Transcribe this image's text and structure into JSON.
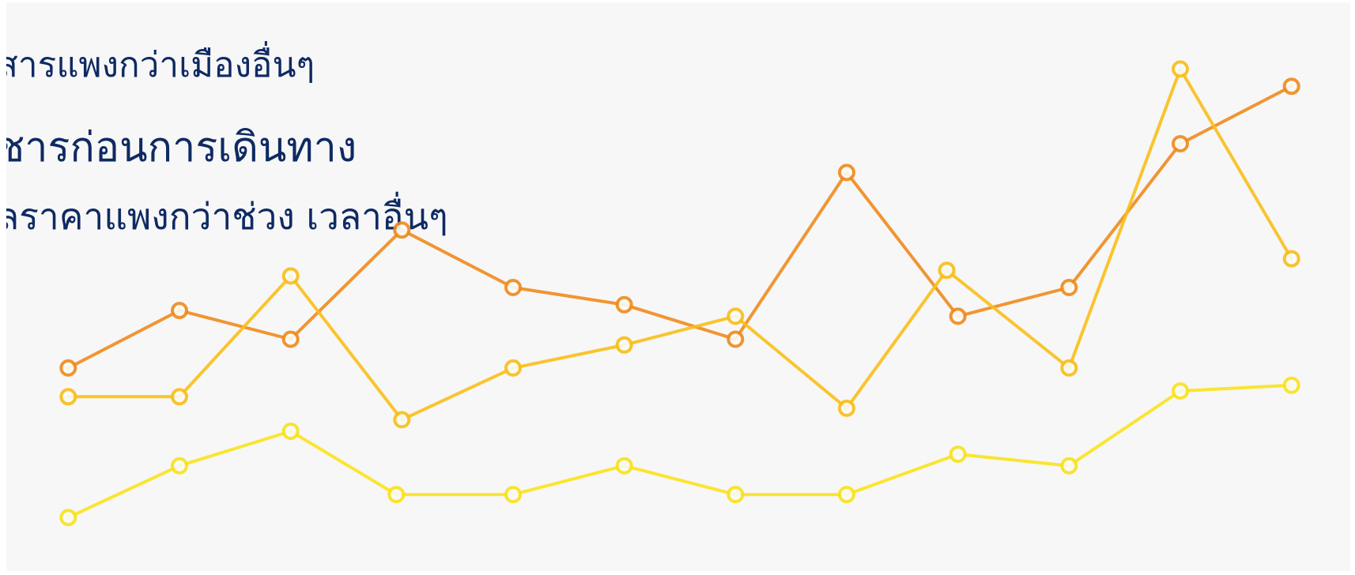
{
  "captions": {
    "line1": "สารแพงกว่าเมืองอื่นๆ",
    "line2": "ชารก่อนการเดินทาง",
    "line3": "ลราคาแพงกว่าช่วง เวลาอื่นๆ"
  },
  "chart_data": {
    "type": "line",
    "grid": false,
    "legend": "none",
    "x": [
      1,
      2,
      3,
      4,
      5,
      6,
      7,
      8,
      9,
      10,
      11,
      12
    ],
    "xlim": [
      0.5,
      12.5
    ],
    "ylim": [
      0,
      100
    ],
    "series": [
      {
        "color": "#f08a1c",
        "x": [
          1,
          2,
          3,
          4,
          5,
          6,
          7,
          8,
          9,
          10,
          11,
          12
        ],
        "values": [
          36,
          46,
          41,
          60,
          50,
          47,
          41,
          70,
          45,
          50,
          75,
          85
        ]
      },
      {
        "color": "#f9be17",
        "x": [
          1,
          2,
          3,
          4,
          5,
          6,
          7,
          8,
          8.9,
          10,
          11,
          12
        ],
        "values": [
          31,
          31,
          52,
          27,
          36,
          40,
          45,
          29,
          53,
          36,
          88,
          55
        ]
      },
      {
        "color": "#f9e21a",
        "x": [
          1,
          2,
          3,
          3.95,
          5,
          6,
          7,
          8,
          9,
          10,
          11,
          12
        ],
        "values": [
          10,
          19,
          25,
          14,
          14,
          19,
          14,
          14,
          21,
          19,
          32,
          33
        ]
      }
    ]
  }
}
